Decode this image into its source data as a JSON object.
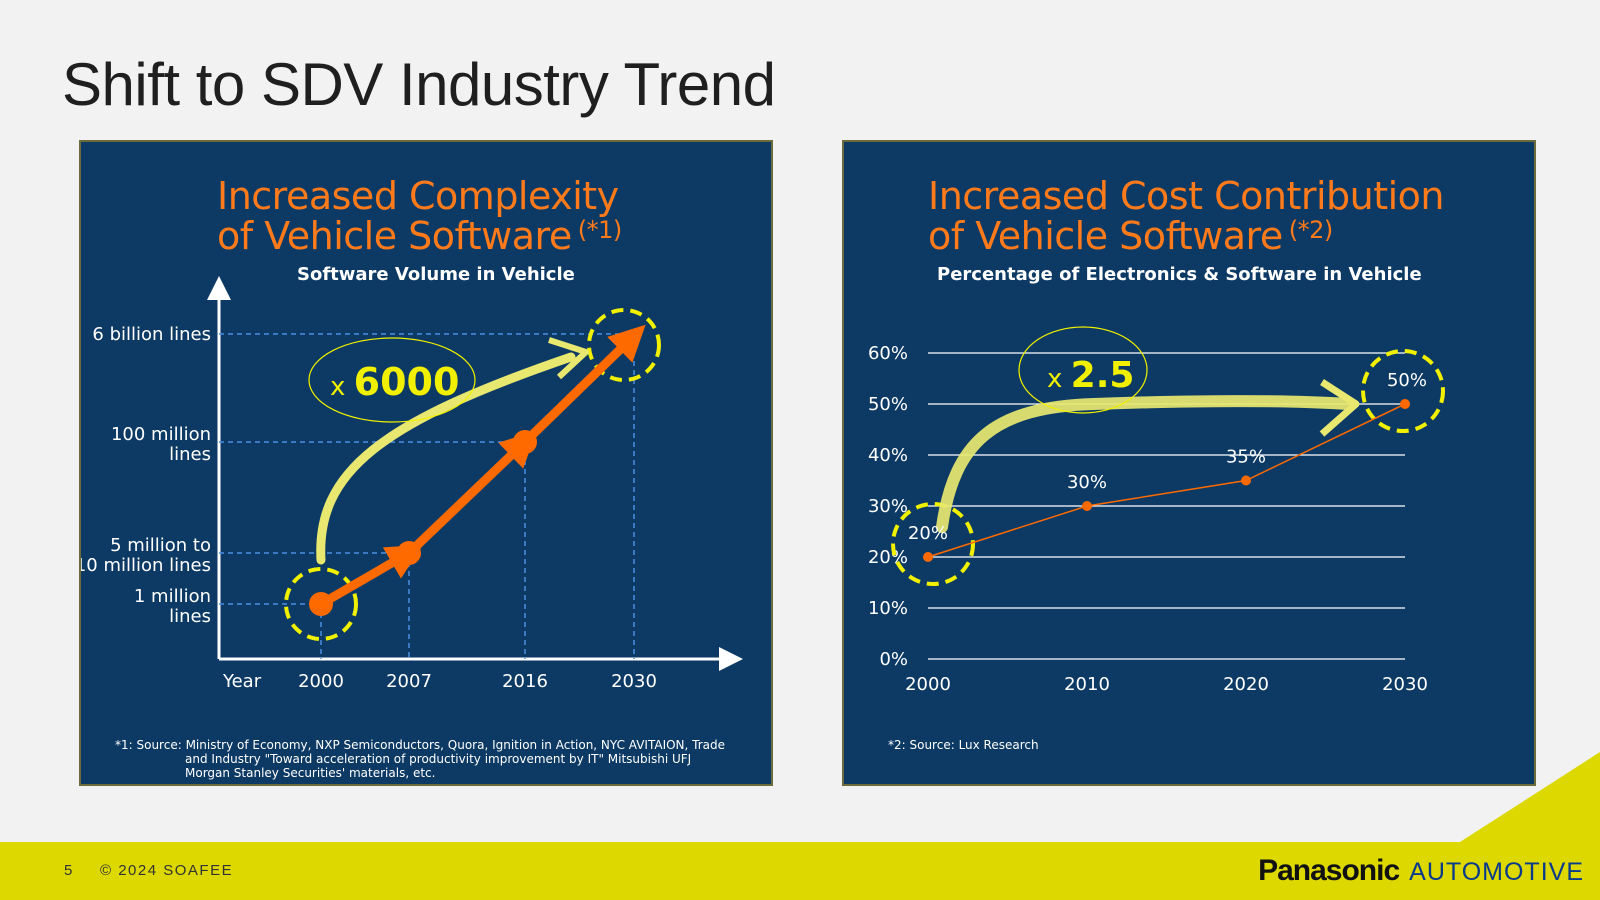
{
  "slide": {
    "title": "Shift to SDV Industry Trend",
    "page_number": "5",
    "copyright": "© 2024 SOAFEE",
    "logo_brand": "Panasonic",
    "logo_sub": "AUTOMOTIVE"
  },
  "left_panel": {
    "heading_line1": "Increased Complexity",
    "heading_line2": "of Vehicle Software",
    "heading_ref": "(*1)",
    "subtitle": "Software Volume in Vehicle",
    "multiplier_prefix": "x",
    "multiplier_value": "6000",
    "footnote_line1": "*1: Source: Ministry of Economy, NXP Semiconductors, Quora, Ignition in Action, NYC AVITAION, Trade",
    "footnote_line2": "and Industry \"Toward acceleration of productivity improvement by IT\" Mitsubishi UFJ",
    "footnote_line3": "Morgan Stanley Securities' materials, etc."
  },
  "right_panel": {
    "heading_line1": "Increased Cost Contribution",
    "heading_line2": "of Vehicle Software",
    "heading_ref": "(*2)",
    "subtitle": "Percentage of Electronics & Software in Vehicle",
    "multiplier_prefix": "x",
    "multiplier_value": "2.5",
    "footnote": "*2: Source: Lux Research"
  },
  "chart_data": [
    {
      "type": "line",
      "title": "Software Volume in Vehicle",
      "xlabel": "Year",
      "x": [
        "2000",
        "2007",
        "2016",
        "2030"
      ],
      "y_tick_labels": [
        "1 million lines",
        "5 million to 10 million lines",
        "100 million lines",
        "6 billion lines"
      ],
      "series": [
        {
          "values": [
            "1 million lines",
            "5 million to 10 million lines",
            "100 million lines",
            "6 billion lines"
          ]
        }
      ],
      "annotation": "x 6000",
      "highlighted_points": [
        "2000",
        "2030"
      ],
      "colors": {
        "line": "#ff6a00",
        "highlight": "#f0f000",
        "arrow": "#e8e870",
        "guide": "#4a90e2"
      }
    },
    {
      "type": "line",
      "title": "Percentage of Electronics & Software in Vehicle",
      "x": [
        "2000",
        "2010",
        "2020",
        "2030"
      ],
      "series": [
        {
          "values": [
            20,
            30,
            35,
            50
          ],
          "data_labels": [
            "20%",
            "30%",
            "35%",
            "50%"
          ]
        }
      ],
      "y_ticks": [
        "0%",
        "10%",
        "20%",
        "30%",
        "40%",
        "50%",
        "60%"
      ],
      "ylim": [
        0,
        60
      ],
      "grid": true,
      "annotation": "x 2.5",
      "highlighted_points": [
        "2000",
        "2030"
      ],
      "colors": {
        "line": "#ff6a00",
        "highlight": "#f0f000",
        "arrow": "#e8e870",
        "grid": "#ffffff"
      }
    }
  ]
}
